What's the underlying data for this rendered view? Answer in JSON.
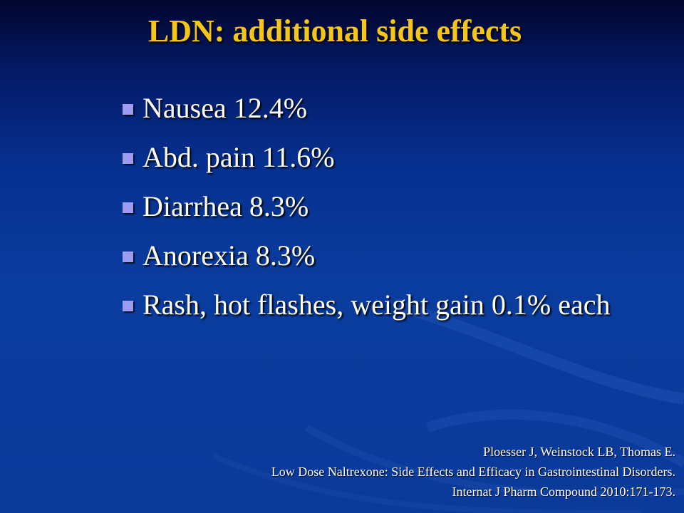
{
  "slide": {
    "title": "LDN: additional side effects",
    "bullets": [
      {
        "text": "Nausea 12.4%"
      },
      {
        "text": "Abd. pain 11.6%"
      },
      {
        "text": "Diarrhea 8.3%"
      },
      {
        "text": "Anorexia 8.3%"
      },
      {
        "text": "Rash, hot flashes, weight gain 0.1% each"
      }
    ],
    "citation": {
      "line1": "Ploesser J, Weinstock LB, Thomas E.",
      "line2": "Low Dose Naltrexone: Side Effects and Efficacy in Gastrointestinal Disorders.",
      "line3": "Internat J Pharm Compound 2010:171-173."
    }
  },
  "colors": {
    "title": "#f5c518",
    "text": "#ffffff",
    "bullet_marker": "#9e9cf0",
    "background": "#0a3a9a"
  }
}
